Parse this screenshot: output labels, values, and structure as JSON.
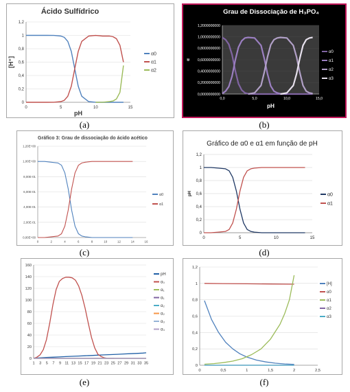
{
  "captions": [
    "(a)",
    "(b)",
    "(c)",
    "(d)",
    "(e)",
    "(f)"
  ],
  "chart_data": [
    {
      "id": "a",
      "type": "line",
      "title": "Ácido Sulfídrico",
      "xlabel": "pH",
      "ylabel": "[H⁺]",
      "xlim": [
        0,
        15
      ],
      "ylim": [
        0,
        1.2
      ],
      "xticks": [
        "0",
        "5",
        "10",
        "15"
      ],
      "yticks": [
        "0",
        "0,2",
        "0,4",
        "0,6",
        "0,8",
        "1",
        "1,2"
      ],
      "legend_position": "right",
      "series": [
        {
          "name": "α0",
          "color": "#4f81bd",
          "x": [
            0,
            1,
            2,
            3,
            4,
            5,
            5.5,
            6,
            6.5,
            7,
            7.5,
            8,
            9,
            10,
            11,
            12,
            13,
            14
          ],
          "y": [
            1,
            1,
            1,
            1,
            0.999,
            0.99,
            0.97,
            0.91,
            0.76,
            0.5,
            0.24,
            0.09,
            0.01,
            0.001,
            0,
            0,
            0,
            0
          ]
        },
        {
          "name": "α1",
          "color": "#c0504d",
          "x": [
            0,
            1,
            2,
            3,
            4,
            5,
            5.5,
            6,
            6.5,
            7,
            7.5,
            8,
            9,
            10,
            11,
            12,
            12.5,
            13,
            13.5,
            14
          ],
          "y": [
            0,
            0,
            0,
            0,
            0.001,
            0.01,
            0.03,
            0.09,
            0.24,
            0.5,
            0.76,
            0.91,
            0.99,
            0.999,
            0.99,
            0.99,
            0.98,
            0.95,
            0.85,
            0.6
          ]
        },
        {
          "name": "α2",
          "color": "#9bbb59",
          "x": [
            10,
            11,
            12,
            12.5,
            13,
            13.5,
            14
          ],
          "y": [
            0,
            0.001,
            0.01,
            0.02,
            0.05,
            0.15,
            0.55
          ]
        }
      ]
    },
    {
      "id": "b",
      "type": "line",
      "title": "Grau de Dissociação de H₃PO₄",
      "xlabel": "pH",
      "ylabel": "α",
      "xlim": [
        0,
        15
      ],
      "ylim": [
        0,
        1.2
      ],
      "xticks": [
        "0,0",
        "5,0",
        "10,0",
        "15,0"
      ],
      "yticks": [
        "0,0000000000",
        "0,2000000000",
        "0,4000000000",
        "0,6000000000",
        "0,8000000000",
        "1,0000000000",
        "1,2000000000"
      ],
      "legend_position": "right",
      "series": [
        {
          "name": "α0",
          "color": "#8064a2",
          "x": [
            0,
            0.5,
            1,
            1.5,
            2,
            2.5,
            3,
            3.5,
            4,
            5,
            14
          ],
          "y": [
            0.99,
            0.95,
            0.87,
            0.69,
            0.41,
            0.18,
            0.07,
            0.02,
            0.005,
            0,
            0
          ]
        },
        {
          "name": "α1",
          "color": "#9b7fc1",
          "x": [
            0,
            0.5,
            1,
            1.5,
            2,
            2.5,
            3,
            3.5,
            4,
            5,
            6,
            6.5,
            7,
            7.5,
            8,
            8.5,
            9,
            10
          ],
          "y": [
            0.01,
            0.05,
            0.13,
            0.31,
            0.59,
            0.82,
            0.93,
            0.98,
            0.99,
            0.98,
            0.85,
            0.62,
            0.35,
            0.14,
            0.05,
            0.02,
            0.005,
            0
          ]
        },
        {
          "name": "α2",
          "color": "#b1a0c7",
          "x": [
            4,
            5,
            6,
            6.5,
            7,
            7.5,
            8,
            8.5,
            9,
            10,
            11,
            11.5,
            12,
            12.5,
            13,
            13.5,
            14
          ],
          "y": [
            0,
            0.02,
            0.15,
            0.38,
            0.65,
            0.86,
            0.95,
            0.98,
            0.99,
            0.98,
            0.85,
            0.65,
            0.38,
            0.15,
            0.05,
            0.02,
            0.01
          ]
        },
        {
          "name": "α3",
          "color": "#e6e0ec",
          "x": [
            9,
            10,
            11,
            11.5,
            12,
            12.5,
            13,
            13.5,
            14
          ],
          "y": [
            0,
            0.02,
            0.15,
            0.35,
            0.62,
            0.85,
            0.95,
            0.98,
            0.99
          ]
        }
      ]
    },
    {
      "id": "c",
      "type": "line",
      "title": "Gráfico 3: Grau de dissociação do ácido acético",
      "xlabel": "",
      "ylabel": "",
      "xlim": [
        0,
        16
      ],
      "ylim": [
        0,
        1.2
      ],
      "xticks": [
        "0",
        "2",
        "4",
        "6",
        "8",
        "10",
        "12",
        "14",
        "16"
      ],
      "yticks": [
        "0,00E+00",
        "2,00E-01",
        "4,00E-01",
        "6,00E-01",
        "8,00E-01",
        "1,00E+00",
        "1,20E+00"
      ],
      "legend_position": "right",
      "series": [
        {
          "name": "α0",
          "color": "#4f81bd",
          "x": [
            0,
            1,
            2,
            3,
            3.5,
            4,
            4.5,
            5,
            5.5,
            6,
            6.5,
            7,
            8,
            10,
            14
          ],
          "y": [
            1,
            1,
            0.99,
            0.98,
            0.95,
            0.85,
            0.64,
            0.36,
            0.15,
            0.05,
            0.02,
            0.01,
            0,
            0,
            0
          ]
        },
        {
          "name": "α1",
          "color": "#c0504d",
          "x": [
            0,
            1,
            2,
            3,
            3.5,
            4,
            4.5,
            5,
            5.5,
            6,
            6.5,
            7,
            8,
            10,
            14
          ],
          "y": [
            0,
            0,
            0.01,
            0.02,
            0.05,
            0.15,
            0.36,
            0.64,
            0.85,
            0.95,
            0.98,
            0.99,
            1,
            1,
            1
          ]
        }
      ]
    },
    {
      "id": "d",
      "type": "line",
      "title": "Gráfico de α0 e α1 em função de pH",
      "xlabel": "",
      "ylabel": "pH",
      "xlim": [
        0,
        15
      ],
      "ylim": [
        0,
        1.2
      ],
      "xticks": [
        "0",
        "5",
        "10",
        "15"
      ],
      "yticks": [
        "0",
        "0,2",
        "0,4",
        "0,6",
        "0,8",
        "1",
        "1,2"
      ],
      "legend_position": "right",
      "series": [
        {
          "name": "α0",
          "color": "#1f3864",
          "x": [
            0,
            1,
            2,
            3,
            3.5,
            4,
            4.5,
            5,
            5.5,
            6,
            6.5,
            7,
            8,
            10,
            14
          ],
          "y": [
            1,
            1,
            0.99,
            0.98,
            0.95,
            0.85,
            0.64,
            0.36,
            0.15,
            0.05,
            0.02,
            0.01,
            0,
            0,
            0
          ]
        },
        {
          "name": "α1",
          "color": "#c0504d",
          "x": [
            0,
            1,
            2,
            3,
            3.5,
            4,
            4.5,
            5,
            5.5,
            6,
            6.5,
            7,
            8,
            10,
            14
          ],
          "y": [
            0,
            0,
            0.01,
            0.02,
            0.05,
            0.15,
            0.36,
            0.64,
            0.85,
            0.95,
            0.98,
            0.99,
            1,
            1,
            1
          ]
        }
      ]
    },
    {
      "id": "e",
      "type": "line",
      "title": "",
      "xlabel": "",
      "ylabel": "",
      "xlim": [
        1,
        36
      ],
      "ylim": [
        0,
        160
      ],
      "xticks": [
        "1",
        "3",
        "5",
        "7",
        "9",
        "11",
        "13",
        "15",
        "17",
        "19",
        "21",
        "23",
        "25",
        "27",
        "29",
        "31",
        "33",
        "35"
      ],
      "yticks": [
        "0",
        "20",
        "40",
        "60",
        "80",
        "100",
        "120",
        "140",
        "160"
      ],
      "legend_position": "right",
      "series": [
        {
          "name": "pH",
          "color": "#1f5fa6",
          "x": [
            1,
            3,
            5,
            7,
            9,
            11,
            13,
            15,
            17,
            19,
            21,
            23,
            25,
            27,
            29,
            31,
            33,
            35,
            36
          ],
          "y": [
            0.5,
            1,
            1.5,
            2,
            2.5,
            3,
            3.5,
            4,
            4.5,
            5,
            5.5,
            6,
            6.5,
            7,
            7.5,
            8,
            8.5,
            9,
            9.5
          ]
        },
        {
          "name": "α₀",
          "color": "#c0504d",
          "x": [
            1,
            2,
            3,
            4,
            5,
            6,
            7,
            8,
            9,
            10,
            11,
            12,
            13,
            14,
            15,
            16,
            17,
            18,
            19,
            20,
            21,
            22,
            23,
            24,
            25,
            26
          ],
          "y": [
            0,
            2,
            6,
            15,
            32,
            60,
            92,
            118,
            132,
            137,
            139,
            139,
            138,
            134,
            124,
            108,
            86,
            60,
            36,
            18,
            7,
            3,
            1,
            0,
            0,
            0
          ]
        },
        {
          "name": "α₁",
          "color": "#9bbb59",
          "x": [
            1,
            36
          ],
          "y": [
            0,
            0
          ]
        },
        {
          "name": "α₁",
          "color": "#8064a2",
          "x": [
            1,
            36
          ],
          "y": [
            0,
            0
          ]
        },
        {
          "name": "α₂",
          "color": "#4bacc6",
          "x": [
            1,
            36
          ],
          "y": [
            0,
            0
          ]
        },
        {
          "name": "α₂",
          "color": "#f79646",
          "x": [
            1,
            36
          ],
          "y": [
            0,
            0
          ]
        },
        {
          "name": "α₃",
          "color": "#95b3d7",
          "x": [
            1,
            36
          ],
          "y": [
            0,
            0
          ]
        },
        {
          "name": "α₃",
          "color": "#b1a0c7",
          "x": [
            1,
            36
          ],
          "y": [
            0,
            0
          ]
        }
      ]
    },
    {
      "id": "f",
      "type": "line",
      "title": "",
      "xlabel": "",
      "ylabel": "",
      "xlim": [
        0,
        2.5
      ],
      "ylim": [
        0,
        1.2
      ],
      "xticks": [
        "0",
        "0,5",
        "1",
        "1,5",
        "2",
        "2,5"
      ],
      "yticks": [
        "0",
        "0,2",
        "0,4",
        "0,6",
        "0,8",
        "1",
        "1,2"
      ],
      "legend_position": "right",
      "series": [
        {
          "name": "[H]",
          "color": "#4f81bd",
          "x": [
            0.1,
            0.25,
            0.4,
            0.55,
            0.7,
            0.85,
            1,
            1.2,
            1.4,
            1.6,
            1.8,
            2
          ],
          "y": [
            0.79,
            0.56,
            0.4,
            0.28,
            0.2,
            0.14,
            0.1,
            0.063,
            0.04,
            0.025,
            0.016,
            0.01
          ]
        },
        {
          "name": "α0",
          "color": "#c0504d",
          "x": [
            0.1,
            0.5,
            1,
            1.5,
            2
          ],
          "y": [
            1.0,
            0.998,
            0.995,
            0.993,
            0.99
          ]
        },
        {
          "name": "α1",
          "color": "#9bbb59",
          "x": [
            0.1,
            0.3,
            0.5,
            0.7,
            0.9,
            1.1,
            1.3,
            1.5,
            1.7,
            1.8,
            1.9,
            2
          ],
          "y": [
            0.013,
            0.02,
            0.032,
            0.05,
            0.08,
            0.13,
            0.2,
            0.32,
            0.5,
            0.63,
            0.8,
            1.1
          ]
        },
        {
          "name": "α2",
          "color": "#8064a2",
          "x": [
            0.1,
            2
          ],
          "y": [
            0,
            0
          ]
        },
        {
          "name": "α3",
          "color": "#4bacc6",
          "x": [
            0.1,
            2
          ],
          "y": [
            0,
            0
          ]
        }
      ]
    }
  ]
}
